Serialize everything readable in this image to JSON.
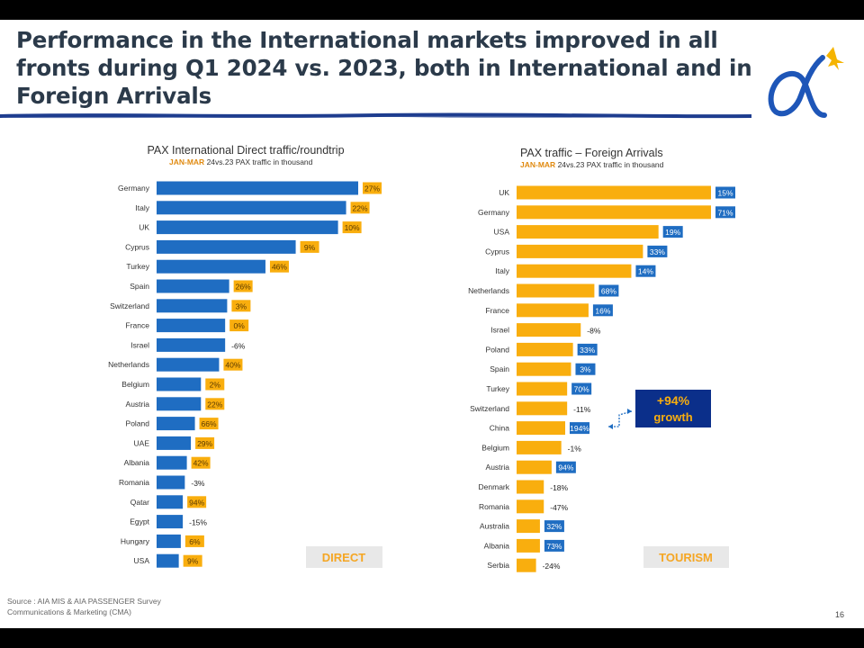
{
  "page": {
    "title": "Performance in the International markets improved in all fronts during Q1 2024 vs. 2023, both in International and in Foreign Arrivals",
    "source_line1": "Source : AIA MIS & AIA PASSENGER Survey",
    "source_line2": "Communications & Marketing (CMA)",
    "page_number": "16",
    "colors": {
      "blue": "#1f6dc2",
      "orange": "#f9ae0e",
      "navy": "#0b2f8a",
      "title": "#2b3a4a"
    }
  },
  "chart_data": [
    {
      "type": "bar",
      "orientation": "horizontal",
      "title": "PAX International Direct traffic/roundtrip",
      "subtitle_highlight": "JAN-MAR",
      "subtitle_rest": " 24vs.23 PAX traffic in thousand",
      "badge": "DIRECT",
      "bar_color": "#1f6dc2",
      "label_color": "#f9ae0e",
      "categories": [
        "Germany",
        "Italy",
        "UK",
        "Cyprus",
        "Turkey",
        "Spain",
        "Switzerland",
        "France",
        "Israel",
        "Netherlands",
        "Belgium",
        "Austria",
        "Poland",
        "UAE",
        "Albania",
        "Romania",
        "Qatar",
        "Egypt",
        "Hungary",
        "USA"
      ],
      "values": [
        100,
        94,
        90,
        69,
        54,
        36,
        35,
        34,
        34,
        31,
        22,
        22,
        19,
        17,
        15,
        14,
        13,
        13,
        12,
        11
      ],
      "growth_labels": [
        "27%",
        "22%",
        "10%",
        "9%",
        "46%",
        "26%",
        "3%",
        "0%",
        "-6%",
        "40%",
        "2%",
        "22%",
        "66%",
        "29%",
        "42%",
        "-3%",
        "94%",
        "-15%",
        "6%",
        "9%"
      ],
      "xlim": [
        0,
        100
      ]
    },
    {
      "type": "bar",
      "orientation": "horizontal",
      "title": "PAX traffic – Foreign Arrivals",
      "subtitle_highlight": "JAN-MAR",
      "subtitle_rest": " 24vs.23 PAX traffic in thousand",
      "badge": "TOURISM",
      "callout_line1": "+94%",
      "callout_line2": "growth",
      "bar_color": "#f9ae0e",
      "label_color": "#1f6dc2",
      "categories": [
        "UK",
        "Germany",
        "USA",
        "Cyprus",
        "Italy",
        "Netherlands",
        "France",
        "Israel",
        "Poland",
        "Spain",
        "Turkey",
        "Switzerland",
        "China",
        "Belgium",
        "Austria",
        "Denmark",
        "Romania",
        "Australia",
        "Albania",
        "Serbia"
      ],
      "values": [
        100,
        100,
        73,
        65,
        59,
        40,
        37,
        33,
        29,
        28,
        26,
        26,
        25,
        23,
        18,
        14,
        14,
        12,
        12,
        10
      ],
      "growth_labels": [
        "15%",
        "71%",
        "19%",
        "33%",
        "14%",
        "68%",
        "16%",
        "-8%",
        "33%",
        "3%",
        "70%",
        "-11%",
        "194%",
        "-1%",
        "94%",
        "-18%",
        "-47%",
        "32%",
        "73%",
        "-24%"
      ],
      "xlim": [
        0,
        100
      ]
    }
  ]
}
